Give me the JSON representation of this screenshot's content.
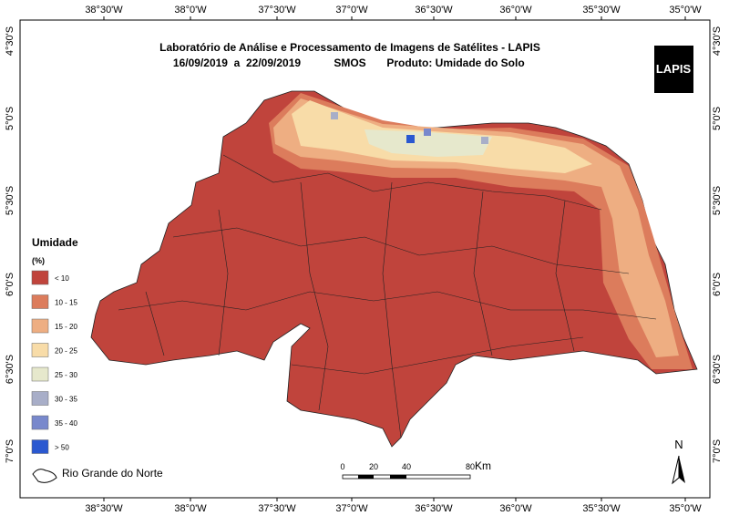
{
  "title": {
    "line1": "Laboratório de Análise e Processamento de Imagens de Satélites - LAPIS",
    "dates": "16/09/2019  a  22/09/2019",
    "sensor": "SMOS",
    "product": "Produto: Umidade do Solo"
  },
  "logo": "LAPIS",
  "axes": {
    "x_labels": [
      "38°30'W",
      "38°0'W",
      "37°30'W",
      "37°0'W",
      "36°30'W",
      "36°0'W",
      "35°30'W",
      "35°0'W"
    ],
    "y_labels": [
      "4°30'S",
      "5°0'S",
      "5°30'S",
      "6°0'S",
      "6°30'S",
      "7°0'S"
    ]
  },
  "legend": {
    "title": "Umidade",
    "unit": "(%)",
    "items": [
      {
        "label": "< 10",
        "color": "#c0443c"
      },
      {
        "label": "10 - 15",
        "color": "#dc7c5c"
      },
      {
        "label": "15 - 20",
        "color": "#eeae82"
      },
      {
        "label": "20 - 25",
        "color": "#f8dca8"
      },
      {
        "label": "25 - 30",
        "color": "#e6e8cc"
      },
      {
        "label": "30 - 35",
        "color": "#a8aec8"
      },
      {
        "label": "35 - 40",
        "color": "#7888cc"
      },
      {
        "label": "> 50",
        "color": "#2a58d0"
      }
    ]
  },
  "scale": {
    "ticks": [
      "0",
      "20",
      "40",
      "80"
    ],
    "unit": "Km"
  },
  "north": "N",
  "state_legend": "Rio Grande do Norte"
}
